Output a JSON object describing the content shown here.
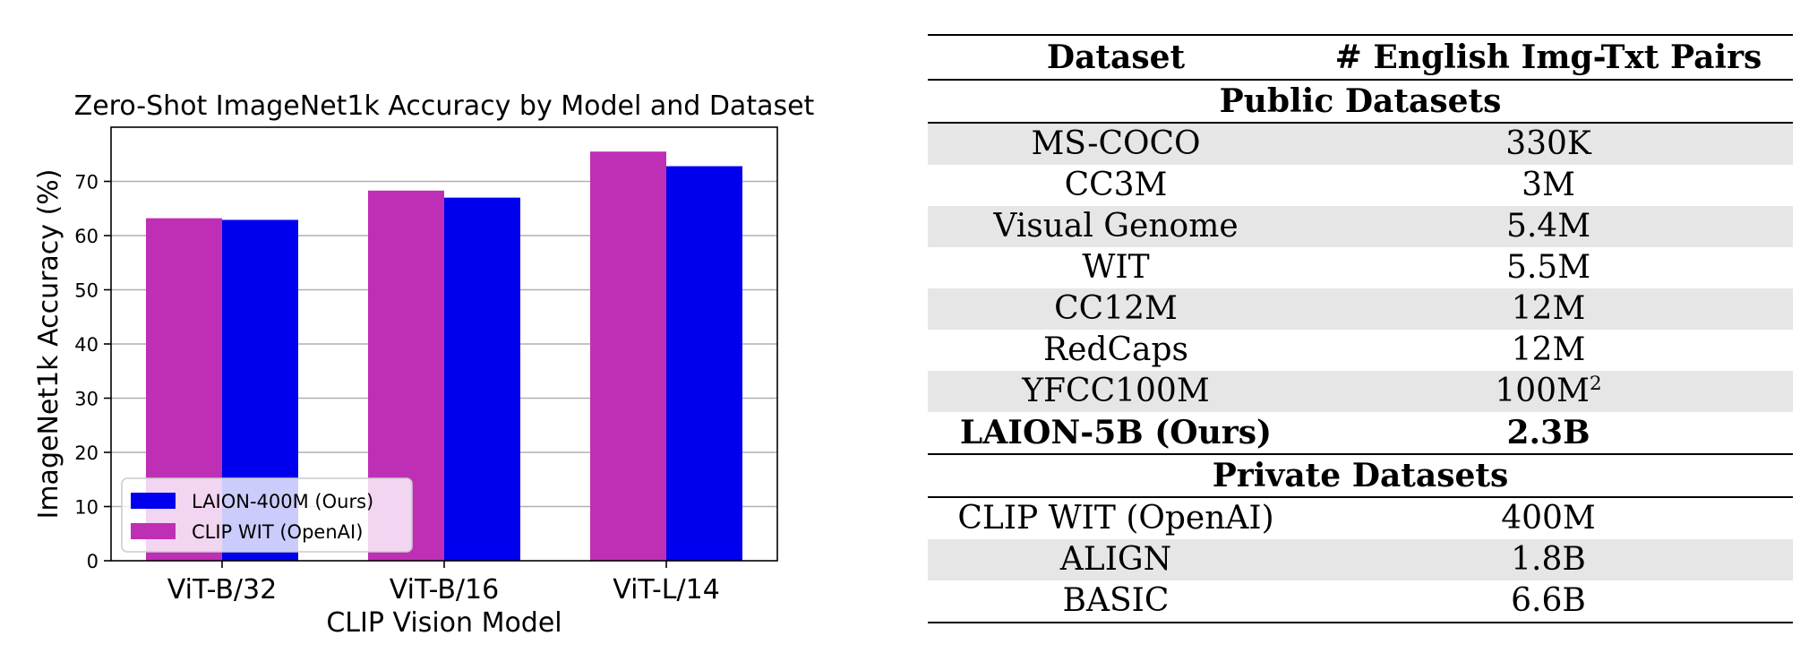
{
  "chart_data": {
    "type": "bar",
    "title": "Zero-Shot ImageNet1k Accuracy by Model and Dataset",
    "xlabel": "CLIP Vision Model",
    "ylabel": "ImageNet1k Accuracy (%)",
    "categories": [
      "ViT-B/32",
      "ViT-B/16",
      "ViT-L/14"
    ],
    "ylim": [
      0,
      80
    ],
    "yticks": [
      0,
      10,
      20,
      30,
      40,
      50,
      60,
      70
    ],
    "grid": true,
    "legend_position": "lower-left",
    "series": [
      {
        "name": "CLIP WIT (OpenAI)",
        "color": "#bf2fb5",
        "values": [
          63.2,
          68.3,
          75.5
        ]
      },
      {
        "name": "LAION-400M (Ours)",
        "color": "#0000ee",
        "values": [
          62.9,
          67.0,
          72.8
        ]
      }
    ],
    "legend_order": [
      "LAION-400M (Ours)",
      "CLIP WIT (OpenAI)"
    ]
  },
  "table": {
    "headers": [
      "Dataset",
      "# English Img-Txt Pairs"
    ],
    "public_section": "Public Datasets",
    "public_rows": [
      {
        "name": "MS-COCO",
        "pairs": "330K"
      },
      {
        "name": "CC3M",
        "pairs": "3M"
      },
      {
        "name": "Visual Genome",
        "pairs": "5.4M"
      },
      {
        "name": "WIT",
        "pairs": "5.5M"
      },
      {
        "name": "CC12M",
        "pairs": "12M"
      },
      {
        "name": "RedCaps",
        "pairs": "12M"
      },
      {
        "name": "YFCC100M",
        "pairs": "100M",
        "sup": "2"
      }
    ],
    "ours_row": {
      "name": "LAION-5B (Ours)",
      "pairs": "2.3B"
    },
    "private_section": "Private Datasets",
    "private_rows": [
      {
        "name": "CLIP WIT (OpenAI)",
        "pairs": "400M"
      },
      {
        "name": "ALIGN",
        "pairs": "1.8B"
      },
      {
        "name": "BASIC",
        "pairs": "6.6B"
      }
    ]
  }
}
